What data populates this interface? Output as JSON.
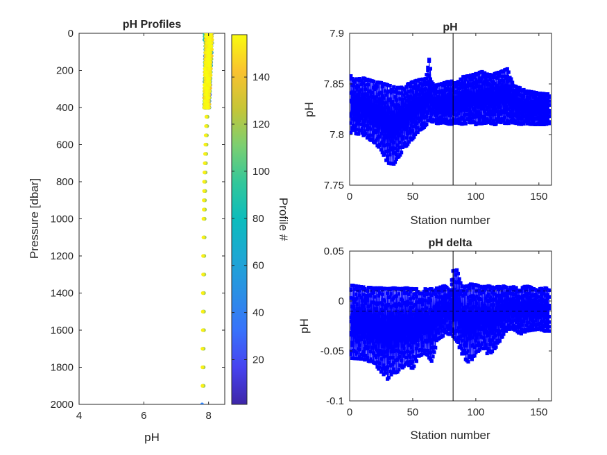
{
  "chart_data": [
    {
      "id": "ph-profiles",
      "type": "scatter",
      "title": "pH Profiles",
      "xlabel": "pH",
      "ylabel": "Pressure [dbar]",
      "xlim": [
        4,
        8.5
      ],
      "ylim": [
        0,
        2000
      ],
      "y_reversed": true,
      "xticks": [
        4,
        6,
        8
      ],
      "yticks": [
        0,
        200,
        400,
        600,
        800,
        1000,
        1200,
        1400,
        1600,
        1800,
        2000
      ],
      "grid": false,
      "colormap": "parula",
      "color_by": "profile",
      "colorbar": {
        "label": "Profile #",
        "range": [
          1,
          158
        ],
        "ticks": [
          20,
          40,
          60,
          80,
          100,
          120,
          140
        ]
      },
      "profile_count": 158,
      "surface_cluster": {
        "pressure_range": [
          0,
          400
        ],
        "ph_range_top": [
          7.93,
          8.1
        ],
        "ph_range_bottom": [
          7.88,
          8.0
        ]
      },
      "deep_points": [
        {
          "pressure": 450,
          "ph": 7.95
        },
        {
          "pressure": 500,
          "ph": 7.94
        },
        {
          "pressure": 550,
          "ph": 7.93
        },
        {
          "pressure": 600,
          "ph": 7.92
        },
        {
          "pressure": 650,
          "ph": 7.91
        },
        {
          "pressure": 700,
          "ph": 7.9
        },
        {
          "pressure": 750,
          "ph": 7.89
        },
        {
          "pressure": 800,
          "ph": 7.88
        },
        {
          "pressure": 850,
          "ph": 7.88
        },
        {
          "pressure": 900,
          "ph": 7.87
        },
        {
          "pressure": 950,
          "ph": 7.87
        },
        {
          "pressure": 1000,
          "ph": 7.86
        },
        {
          "pressure": 1100,
          "ph": 7.86
        },
        {
          "pressure": 1200,
          "ph": 7.85
        },
        {
          "pressure": 1300,
          "ph": 7.85
        },
        {
          "pressure": 1400,
          "ph": 7.84
        },
        {
          "pressure": 1500,
          "ph": 7.84
        },
        {
          "pressure": 1600,
          "ph": 7.84
        },
        {
          "pressure": 1700,
          "ph": 7.83
        },
        {
          "pressure": 1800,
          "ph": 7.83
        },
        {
          "pressure": 1900,
          "ph": 7.83
        },
        {
          "pressure": 2000,
          "ph": 7.8
        }
      ]
    },
    {
      "id": "ph-station",
      "type": "line",
      "title": "pH",
      "xlabel": "Station number",
      "ylabel": "pH",
      "xlim": [
        0,
        160
      ],
      "ylim": [
        7.75,
        7.9
      ],
      "xticks": [
        0,
        50,
        100,
        150
      ],
      "yticks": [
        7.75,
        7.8,
        7.85,
        7.9
      ],
      "ytick_labels": [
        "7.75",
        "7.8",
        "7.85",
        "7.9"
      ],
      "grid": false,
      "marker": "square",
      "color": "#0000ff",
      "station_range": [
        1,
        158
      ],
      "vertical_line_x": 82,
      "band": {
        "x": [
          0,
          10,
          20,
          25,
          30,
          35,
          40,
          45,
          50,
          55,
          60,
          63,
          65,
          70,
          75,
          80,
          85,
          90,
          95,
          100,
          105,
          110,
          115,
          120,
          125,
          130,
          135,
          140,
          145,
          150,
          155,
          158
        ],
        "upper": [
          7.858,
          7.856,
          7.852,
          7.851,
          7.849,
          7.847,
          7.846,
          7.849,
          7.852,
          7.854,
          7.855,
          7.878,
          7.852,
          7.849,
          7.851,
          7.853,
          7.851,
          7.857,
          7.858,
          7.86,
          7.862,
          7.859,
          7.86,
          7.862,
          7.865,
          7.848,
          7.846,
          7.843,
          7.842,
          7.841,
          7.84,
          7.84
        ],
        "lower": [
          7.802,
          7.8,
          7.792,
          7.785,
          7.772,
          7.771,
          7.78,
          7.789,
          7.796,
          7.804,
          7.808,
          7.814,
          7.813,
          7.811,
          7.812,
          7.81,
          7.812,
          7.81,
          7.812,
          7.81,
          7.811,
          7.812,
          7.81,
          7.812,
          7.811,
          7.812,
          7.81,
          7.811,
          7.81,
          7.81,
          7.81,
          7.811
        ]
      }
    },
    {
      "id": "ph-delta",
      "type": "line",
      "title": "pH delta",
      "xlabel": "Station number",
      "ylabel": "pH",
      "xlim": [
        0,
        160
      ],
      "ylim": [
        -0.1,
        0.05
      ],
      "xticks": [
        0,
        50,
        100,
        150
      ],
      "yticks": [
        -0.1,
        -0.05,
        0,
        0.05
      ],
      "ytick_labels": [
        "-0.1",
        "-0.05",
        "0",
        "0.05"
      ],
      "grid": false,
      "marker": "square",
      "color": "#0000ff",
      "station_range": [
        1,
        158
      ],
      "vertical_line_x": 82,
      "dashed_reference_lines": [
        0.01,
        -0.01
      ],
      "band": {
        "x": [
          0,
          10,
          20,
          25,
          30,
          35,
          40,
          45,
          50,
          55,
          60,
          65,
          70,
          75,
          80,
          82,
          85,
          90,
          95,
          100,
          105,
          110,
          115,
          120,
          125,
          130,
          135,
          140,
          145,
          150,
          155,
          158
        ],
        "upper": [
          0.016,
          0.014,
          0.013,
          0.013,
          0.012,
          0.013,
          0.012,
          0.013,
          0.012,
          0.012,
          0.012,
          0.012,
          0.013,
          0.015,
          0.012,
          0.03,
          0.031,
          0.013,
          0.017,
          0.016,
          0.014,
          0.015,
          0.013,
          0.016,
          0.013,
          0.014,
          0.012,
          0.015,
          0.013,
          0.012,
          0.013,
          0.012
        ],
        "lower": [
          -0.057,
          -0.058,
          -0.062,
          -0.072,
          -0.078,
          -0.072,
          -0.07,
          -0.062,
          -0.068,
          -0.055,
          -0.052,
          -0.06,
          -0.038,
          -0.034,
          -0.033,
          -0.035,
          -0.04,
          -0.056,
          -0.062,
          -0.053,
          -0.046,
          -0.054,
          -0.048,
          -0.038,
          -0.028,
          -0.028,
          -0.034,
          -0.03,
          -0.029,
          -0.028,
          -0.03,
          -0.03
        ]
      }
    }
  ]
}
